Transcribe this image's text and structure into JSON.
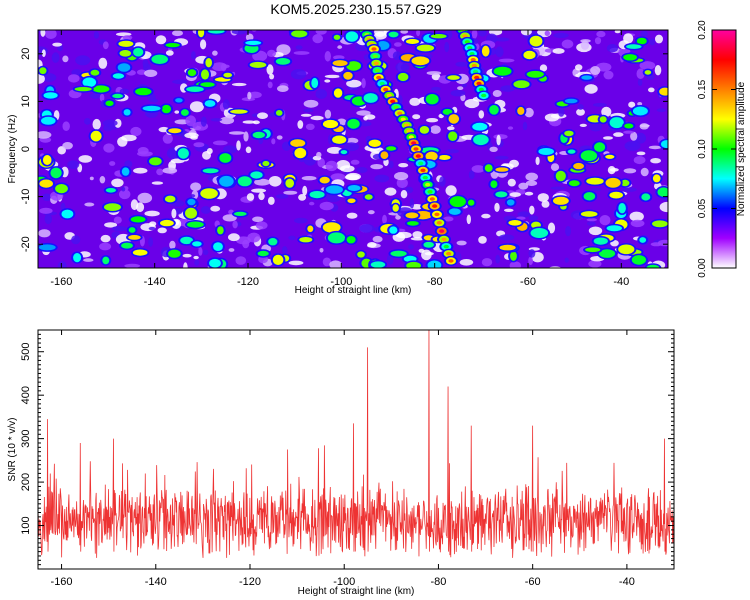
{
  "figure": {
    "title": "KOM5.2025.230.15.57.G29"
  },
  "chart_data": [
    {
      "type": "heatmap",
      "title": "KOM5.2025.230.15.57.G29",
      "xlabel": "Height of straight line (km)",
      "ylabel": "Frequency (Hz)",
      "xlim": [
        -165,
        -30
      ],
      "ylim": [
        -25,
        25
      ],
      "xticks": [
        -160,
        -140,
        -120,
        -100,
        -80,
        -60,
        -40
      ],
      "yticks": [
        -20,
        -10,
        0,
        10,
        20
      ],
      "colorbar": {
        "label": "Normalized spectral amplitude",
        "range": [
          0,
          0.2
        ],
        "ticks": [
          "0.00",
          "0.05",
          "0.10",
          "0.15",
          "0.20"
        ],
        "colors": [
          "#ffffff",
          "#a000ff",
          "#0000ff",
          "#00ffff",
          "#00ff00",
          "#ffff00",
          "#ff8000",
          "#ff0000",
          "#ff00a0"
        ]
      },
      "ridge": [
        {
          "x": -95,
          "y": 25
        },
        {
          "x": -93,
          "y": 21
        },
        {
          "x": -92,
          "y": 15
        },
        {
          "x": -89,
          "y": 10
        },
        {
          "x": -86,
          "y": 5
        },
        {
          "x": -84,
          "y": 0
        },
        {
          "x": -82,
          "y": -6
        },
        {
          "x": -80,
          "y": -12
        },
        {
          "x": -78,
          "y": -19
        },
        {
          "x": -76,
          "y": -25
        }
      ],
      "ridge2": [
        {
          "x": -74,
          "y": 25
        },
        {
          "x": -72,
          "y": 20
        },
        {
          "x": -71,
          "y": 15
        },
        {
          "x": -69,
          "y": 10
        }
      ]
    },
    {
      "type": "line",
      "xlabel": "Height of straight line (km)",
      "ylabel": "SNR (10 * v/v)",
      "xlim": [
        -165,
        -30
      ],
      "ylim": [
        0,
        550
      ],
      "xticks": [
        -160,
        -140,
        -120,
        -100,
        -80,
        -60,
        -40
      ],
      "yticks": [
        100,
        200,
        300,
        400,
        500
      ],
      "baseline": 110,
      "color": "#ee3333",
      "peaks": [
        {
          "x": -95,
          "y": 510
        },
        {
          "x": -82,
          "y": 550
        },
        {
          "x": -78,
          "y": 420
        },
        {
          "x": -163,
          "y": 345
        },
        {
          "x": -73,
          "y": 330
        },
        {
          "x": -60,
          "y": 330
        },
        {
          "x": -98,
          "y": 335
        },
        {
          "x": -32,
          "y": 300
        },
        {
          "x": -149,
          "y": 300
        },
        {
          "x": -156,
          "y": 290
        }
      ]
    }
  ]
}
